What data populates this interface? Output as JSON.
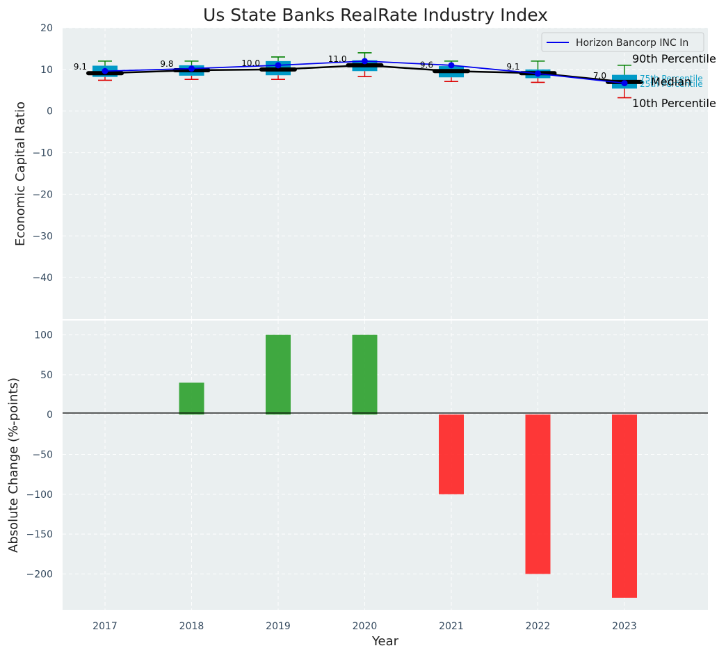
{
  "chart_data": [
    {
      "type": "box",
      "title": "Us State Banks RealRate Industry Index",
      "ylabel": "Economic Capital Ratio",
      "ylim": [
        -50,
        20
      ],
      "yticks": [
        20,
        10,
        0,
        -10,
        -20,
        -30,
        -40
      ],
      "categories": [
        "2017",
        "2018",
        "2019",
        "2020",
        "2021",
        "2022",
        "2023"
      ],
      "median_labels": [
        "9.1",
        "9.8",
        "10.0",
        "11.0",
        "9.6",
        "9.1",
        "7.0"
      ],
      "boxes": [
        {
          "p10": 7.4,
          "p25": 8.2,
          "median": 9.1,
          "p75": 10.9,
          "p90": 12.0
        },
        {
          "p10": 7.6,
          "p25": 8.5,
          "median": 9.8,
          "p75": 11.0,
          "p90": 12.0
        },
        {
          "p10": 7.6,
          "p25": 8.6,
          "median": 10.0,
          "p75": 12.0,
          "p90": 13.0
        },
        {
          "p10": 8.3,
          "p25": 9.6,
          "median": 11.0,
          "p75": 12.2,
          "p90": 14.0
        },
        {
          "p10": 7.1,
          "p25": 8.1,
          "median": 9.6,
          "p75": 10.8,
          "p90": 12.0
        },
        {
          "p10": 6.9,
          "p25": 7.9,
          "median": 9.1,
          "p75": 10.0,
          "p90": 12.0
        },
        {
          "p10": 3.2,
          "p25": 5.4,
          "median": 7.0,
          "p75": 8.7,
          "p90": 11.0
        }
      ],
      "series": [
        {
          "name": "Horizon Bancorp INC In",
          "values": [
            9.6,
            10.2,
            11.0,
            12.0,
            11.0,
            9.0,
            6.7
          ],
          "color": "#0000ee"
        }
      ],
      "legend": {
        "label": "Horizon Bancorp INC In",
        "position": "top-right"
      },
      "annotations": {
        "p90": "90th Percentile",
        "p75": "75th Percentile",
        "median": "Median",
        "p25": "25th Percentile",
        "p10": "10th Percentile"
      },
      "colors": {
        "box": "#009ac7",
        "median": "#000000",
        "whisker_top": "#008000",
        "whisker_bottom": "#dd0000",
        "pct_label": "#17a2c8"
      }
    },
    {
      "type": "bar",
      "xlabel": "Year",
      "ylabel": "Absolute Change (%-points)",
      "ylim": [
        -245,
        118
      ],
      "yticks": [
        100,
        50,
        0,
        -50,
        -100,
        -150,
        -200
      ],
      "categories": [
        "2017",
        "2018",
        "2019",
        "2020",
        "2021",
        "2022",
        "2023"
      ],
      "values": [
        0,
        40,
        100,
        100,
        -100,
        -200,
        -230
      ],
      "colors": {
        "positive": "#2ca02c",
        "negative": "#ff2222",
        "zero_line": "#000000"
      }
    }
  ],
  "style": {
    "panel_bg": "#eaeff0",
    "text": "#222222",
    "tick": "#34495e"
  }
}
